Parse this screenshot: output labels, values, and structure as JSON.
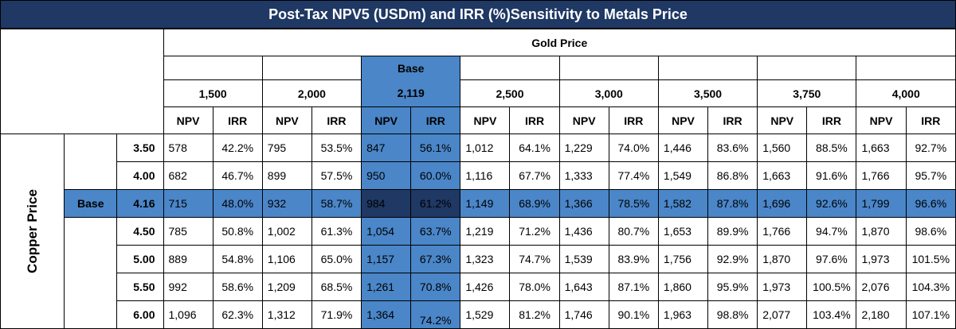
{
  "title": "Post-Tax NPV5 (USDm) and IRR (%)Sensitivity to Metals Price",
  "gold_label": "Gold Price",
  "copper_label": "Copper Price",
  "base_label": "Base",
  "col_npv": "NPV",
  "col_irr": "IRR",
  "gold_prices": [
    "1,500",
    "2,000",
    "2,119",
    "2,500",
    "3,000",
    "3,500",
    "3,750",
    "4,000"
  ],
  "base_gold_index": 2,
  "base_copper_index": 2,
  "colors": {
    "dark_navy": "#1f3864",
    "mid_blue": "#4a86c8",
    "white": "#ffffff"
  },
  "rows": [
    {
      "copper": "3.50",
      "cells": [
        "578",
        "42.2%",
        "795",
        "53.5%",
        "847",
        "56.1%",
        "1,012",
        "64.1%",
        "1,229",
        "74.0%",
        "1,446",
        "83.6%",
        "1,560",
        "88.5%",
        "1,663",
        "92.7%"
      ]
    },
    {
      "copper": "4.00",
      "cells": [
        "682",
        "46.7%",
        "899",
        "57.5%",
        "950",
        "60.0%",
        "1,116",
        "67.7%",
        "1,333",
        "77.4%",
        "1,549",
        "86.8%",
        "1,663",
        "91.6%",
        "1,766",
        "95.7%"
      ]
    },
    {
      "copper": "4.16",
      "cells": [
        "715",
        "48.0%",
        "932",
        "58.7%",
        "984",
        "61.2%",
        "1,149",
        "68.9%",
        "1,366",
        "78.5%",
        "1,582",
        "87.8%",
        "1,696",
        "92.6%",
        "1,799",
        "96.6%"
      ]
    },
    {
      "copper": "4.50",
      "cells": [
        "785",
        "50.8%",
        "1,002",
        "61.3%",
        "1,054",
        "63.7%",
        "1,219",
        "71.2%",
        "1,436",
        "80.7%",
        "1,653",
        "89.9%",
        "1,766",
        "94.7%",
        "1,870",
        "98.6%"
      ]
    },
    {
      "copper": "5.00",
      "cells": [
        "889",
        "54.8%",
        "1,106",
        "65.0%",
        "1,157",
        "67.3%",
        "1,323",
        "74.7%",
        "1,539",
        "83.9%",
        "1,756",
        "92.9%",
        "1,870",
        "97.6%",
        "1,973",
        "101.5%"
      ]
    },
    {
      "copper": "5.50",
      "cells": [
        "992",
        "58.6%",
        "1,209",
        "68.5%",
        "1,261",
        "70.8%",
        "1,426",
        "78.0%",
        "1,643",
        "87.1%",
        "1,860",
        "95.9%",
        "1,973",
        "100.5%",
        "2,076",
        "104.3%"
      ]
    },
    {
      "copper": "6.00",
      "cells": [
        "1,096",
        "62.3%",
        "1,312",
        "71.9%",
        "1,364",
        "74.2%",
        "1,529",
        "81.2%",
        "1,746",
        "90.1%",
        "1,963",
        "98.8%",
        "2,077",
        "103.4%",
        "2,180",
        "107.1%"
      ]
    }
  ]
}
